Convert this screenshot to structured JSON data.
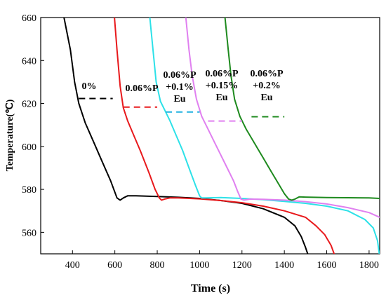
{
  "chart_data": {
    "type": "line",
    "title": "",
    "xlabel": "Time (s)",
    "ylabel": "Temperature(℃)",
    "xlim": [
      250,
      1850
    ],
    "ylim": [
      550,
      660
    ],
    "xticks": [
      400,
      600,
      800,
      1000,
      1200,
      1400,
      1600,
      1800
    ],
    "yticks": [
      560,
      580,
      600,
      620,
      640,
      660
    ],
    "grid": false,
    "legend": "none",
    "series": [
      {
        "color": "#000000",
        "points": [
          [
            360,
            660
          ],
          [
            390,
            645
          ],
          [
            410,
            630
          ],
          [
            430,
            620
          ],
          [
            460,
            611
          ],
          [
            500,
            602
          ],
          [
            540,
            593
          ],
          [
            580,
            584
          ],
          [
            610,
            576
          ],
          [
            625,
            575
          ],
          [
            640,
            576
          ],
          [
            660,
            577
          ],
          [
            700,
            577
          ],
          [
            800,
            576.7
          ],
          [
            900,
            576.3
          ],
          [
            1000,
            575.8
          ],
          [
            1100,
            574.8
          ],
          [
            1200,
            573.5
          ],
          [
            1300,
            571
          ],
          [
            1400,
            567
          ],
          [
            1450,
            563
          ],
          [
            1480,
            558
          ],
          [
            1500,
            553
          ],
          [
            1510,
            550
          ]
        ]
      },
      {
        "color": "#e8191c",
        "points": [
          [
            598,
            660
          ],
          [
            610,
            645
          ],
          [
            625,
            628
          ],
          [
            640,
            618
          ],
          [
            660,
            612
          ],
          [
            690,
            605
          ],
          [
            720,
            598
          ],
          [
            760,
            588
          ],
          [
            790,
            580
          ],
          [
            810,
            576
          ],
          [
            820,
            575
          ],
          [
            835,
            575.5
          ],
          [
            860,
            576
          ],
          [
            900,
            576
          ],
          [
            1000,
            575.6
          ],
          [
            1100,
            574.8
          ],
          [
            1200,
            573.8
          ],
          [
            1300,
            572.2
          ],
          [
            1400,
            570
          ],
          [
            1500,
            567
          ],
          [
            1550,
            563
          ],
          [
            1590,
            559
          ],
          [
            1620,
            554
          ],
          [
            1635,
            550
          ]
        ]
      },
      {
        "color": "#2de1e8",
        "points": [
          [
            765,
            660
          ],
          [
            780,
            645
          ],
          [
            795,
            630
          ],
          [
            815,
            621
          ],
          [
            840,
            616
          ],
          [
            860,
            612
          ],
          [
            890,
            605
          ],
          [
            920,
            598
          ],
          [
            950,
            590
          ],
          [
            980,
            582
          ],
          [
            1000,
            577
          ],
          [
            1010,
            576
          ],
          [
            1030,
            576
          ],
          [
            1100,
            576.2
          ],
          [
            1200,
            575.8
          ],
          [
            1300,
            575.2
          ],
          [
            1400,
            574.4
          ],
          [
            1500,
            573.5
          ],
          [
            1600,
            572.2
          ],
          [
            1700,
            570
          ],
          [
            1780,
            566
          ],
          [
            1820,
            562
          ],
          [
            1840,
            556
          ],
          [
            1848,
            550
          ]
        ]
      },
      {
        "color": "#e080f0",
        "points": [
          [
            935,
            660
          ],
          [
            950,
            645
          ],
          [
            965,
            633
          ],
          [
            985,
            622
          ],
          [
            1010,
            614
          ],
          [
            1040,
            608
          ],
          [
            1070,
            602
          ],
          [
            1100,
            596
          ],
          [
            1130,
            590
          ],
          [
            1160,
            584
          ],
          [
            1180,
            579
          ],
          [
            1195,
            575.5
          ],
          [
            1210,
            575
          ],
          [
            1240,
            575.5
          ],
          [
            1300,
            575.4
          ],
          [
            1400,
            575
          ],
          [
            1500,
            574.3
          ],
          [
            1600,
            573.2
          ],
          [
            1700,
            571.5
          ],
          [
            1800,
            569.2
          ],
          [
            1850,
            567
          ]
        ]
      },
      {
        "color": "#1e8a1e",
        "points": [
          [
            1120,
            660
          ],
          [
            1135,
            645
          ],
          [
            1148,
            633
          ],
          [
            1165,
            622
          ],
          [
            1190,
            614
          ],
          [
            1220,
            608
          ],
          [
            1250,
            603
          ],
          [
            1280,
            598
          ],
          [
            1310,
            593
          ],
          [
            1340,
            588
          ],
          [
            1370,
            583
          ],
          [
            1400,
            578
          ],
          [
            1420,
            575.5
          ],
          [
            1435,
            575
          ],
          [
            1450,
            575.5
          ],
          [
            1470,
            576.5
          ],
          [
            1500,
            576.4
          ],
          [
            1600,
            576.2
          ],
          [
            1700,
            576.1
          ],
          [
            1800,
            576
          ],
          [
            1850,
            575.8
          ]
        ]
      }
    ],
    "dashed_levels": [
      {
        "color": "#000000",
        "x_from": 430,
        "x_to": 590,
        "y": 622.3
      },
      {
        "color": "#e8191c",
        "x_from": 640,
        "x_to": 800,
        "y": 618.3
      },
      {
        "color": "#1fb0e0",
        "x_from": 840,
        "x_to": 1000,
        "y": 616
      },
      {
        "color": "#e080f0",
        "x_from": 1040,
        "x_to": 1200,
        "y": 611.8
      },
      {
        "color": "#1e8a1e",
        "x_from": 1245,
        "x_to": 1400,
        "y": 613.8
      }
    ],
    "annotations": [
      {
        "lines": [
          "0%"
        ]
      },
      {
        "lines": [
          "0.06%P"
        ]
      },
      {
        "lines": [
          "0.06%P",
          "+0.1%",
          "Eu"
        ]
      },
      {
        "lines": [
          "0.06%P",
          "+0.15%",
          "Eu"
        ]
      },
      {
        "lines": [
          "0.06%P",
          "+0.2%",
          "Eu"
        ]
      }
    ]
  }
}
